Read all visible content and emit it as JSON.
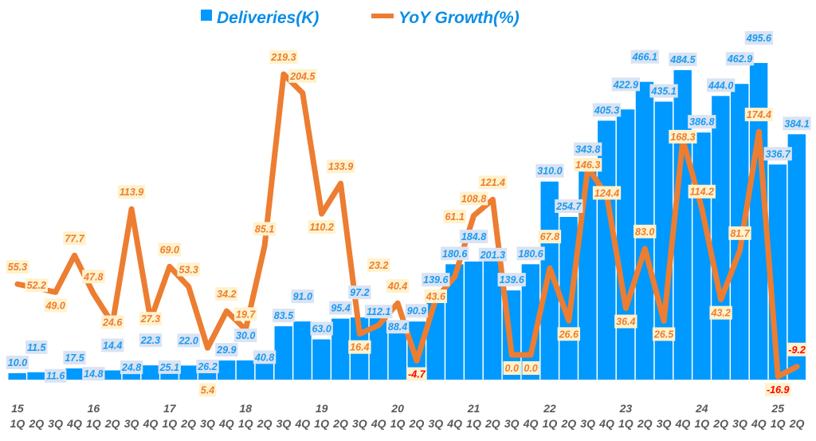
{
  "chart_data": {
    "type": "bar+line",
    "title": "",
    "years": [
      "15",
      "16",
      "17",
      "18",
      "19",
      "20",
      "21",
      "22",
      "23",
      "24",
      "25"
    ],
    "quarter_labels": [
      "1Q",
      "2Q",
      "3Q",
      "4Q"
    ],
    "categories": [
      "15 1Q",
      "15 2Q",
      "15 3Q",
      "15 4Q",
      "16 1Q",
      "16 2Q",
      "16 3Q",
      "16 4Q",
      "17 1Q",
      "17 2Q",
      "17 3Q",
      "17 4Q",
      "18 1Q",
      "18 2Q",
      "18 3Q",
      "18 4Q",
      "19 1Q",
      "19 2Q",
      "19 3Q",
      "19 4Q",
      "20 1Q",
      "20 2Q",
      "20 3Q",
      "20 4Q",
      "21 1Q",
      "21 2Q",
      "21 3Q",
      "21 4Q",
      "22 1Q",
      "22 2Q",
      "22 3Q",
      "22 4Q",
      "23 1Q",
      "23 2Q",
      "23 3Q",
      "23 4Q",
      "24 1Q",
      "24 2Q",
      "24 3Q",
      "24 4Q",
      "25 1Q",
      "25 2Q"
    ],
    "series": [
      {
        "name": "Deliveries(K)",
        "type": "bar",
        "axis": "left",
        "color": "#0099ff",
        "values": [
          10.0,
          11.5,
          11.6,
          17.5,
          14.8,
          14.4,
          24.8,
          22.3,
          25.1,
          22.0,
          26.2,
          29.9,
          30.0,
          40.8,
          83.5,
          91.0,
          63.0,
          95.4,
          97.2,
          112.1,
          88.4,
          90.9,
          139.6,
          180.6,
          184.8,
          201.3,
          139.6,
          180.6,
          310.0,
          254.7,
          343.8,
          405.3,
          422.9,
          466.1,
          435.1,
          484.5,
          386.8,
          444.0,
          462.9,
          495.6,
          336.7,
          384.1
        ]
      },
      {
        "name": "YoY Growth(%)",
        "type": "line",
        "axis": "right",
        "color": "#ed7d31",
        "values": [
          55.3,
          52.2,
          49.0,
          77.7,
          47.8,
          24.6,
          113.9,
          27.3,
          69.0,
          53.3,
          5.4,
          34.2,
          19.7,
          85.1,
          219.3,
          204.5,
          110.2,
          133.9,
          16.4,
          23.2,
          40.4,
          -4.7,
          43.6,
          61.1,
          108.8,
          121.4,
          0.0,
          0.0,
          67.8,
          26.6,
          146.3,
          124.4,
          36.4,
          83.0,
          26.5,
          168.3,
          114.2,
          43.2,
          81.7,
          174.4,
          -16.9,
          -9.2
        ]
      }
    ],
    "ylim_left": [
      0,
      600
    ],
    "ylim_right": [
      -30,
      280
    ],
    "legend": "top-center",
    "grid": false,
    "bar_label_bg": "#dae3f3",
    "line_label_bg": "#fff2cc",
    "negative_label_color": "#ff0000"
  }
}
